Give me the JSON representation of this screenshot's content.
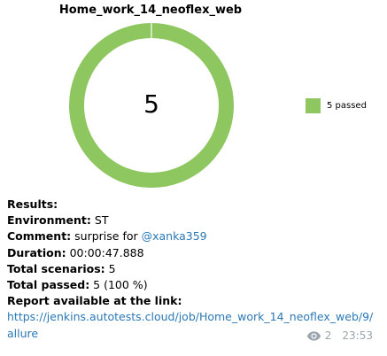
{
  "chart_data": {
    "type": "pie",
    "title": "Home_work_14_neoflex_web",
    "center_label": "5",
    "categories": [
      "5 passed"
    ],
    "values": [
      5
    ],
    "colors": [
      "#8ec760"
    ],
    "legend_position": "right"
  },
  "message": {
    "results_label": "Results:",
    "environment_label": "Environment:",
    "environment_value": " ST",
    "comment_label": "Comment:",
    "comment_value": " surprise for ",
    "comment_mention": "@xanka359",
    "duration_label": "Duration:",
    "duration_value": " 00:00:47.888",
    "scenarios_label": "Total scenarios:",
    "scenarios_value": " 5",
    "passed_label": "Total passed:",
    "passed_value": " 5 (100 %)",
    "report_label": "Report available at the link:",
    "link_line1": "https://jenkins.autotests.cloud/job/Home_work_14_neoflex_web/9/",
    "link_line2": "allure"
  },
  "meta": {
    "view_count": "2",
    "time": "23:53",
    "view_icon": "eye-icon"
  }
}
